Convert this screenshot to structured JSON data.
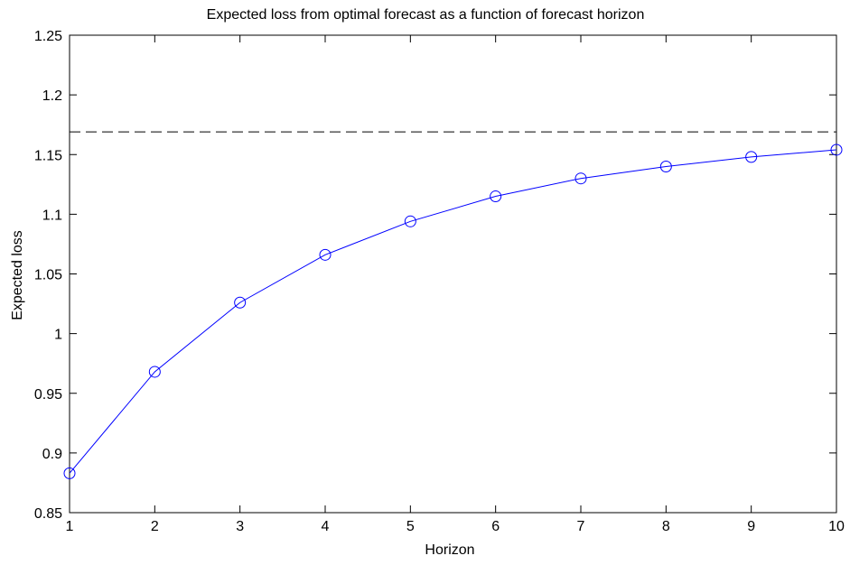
{
  "chart_data": {
    "type": "line",
    "title": "Expected loss from optimal forecast as a function of forecast horizon",
    "xlabel": "Horizon",
    "ylabel": "Expected loss",
    "xlim": [
      1,
      10
    ],
    "ylim": [
      0.85,
      1.25
    ],
    "x_ticks": [
      "1",
      "2",
      "3",
      "4",
      "5",
      "6",
      "7",
      "8",
      "9",
      "10"
    ],
    "y_ticks": [
      "0.85",
      "0.9",
      "0.95",
      "1",
      "1.05",
      "1.1",
      "1.15",
      "1.2",
      "1.25"
    ],
    "grid": false,
    "series": [
      {
        "marker": "circle",
        "color": "#0000ff",
        "x": [
          1,
          2,
          3,
          4,
          5,
          6,
          7,
          8,
          9,
          10
        ],
        "values": [
          0.883,
          0.968,
          1.026,
          1.066,
          1.094,
          1.115,
          1.13,
          1.14,
          1.148,
          1.154
        ]
      }
    ],
    "reference_lines": [
      {
        "orientation": "horizontal",
        "value": 1.169,
        "style": "dashed",
        "color": "#000000"
      }
    ]
  }
}
